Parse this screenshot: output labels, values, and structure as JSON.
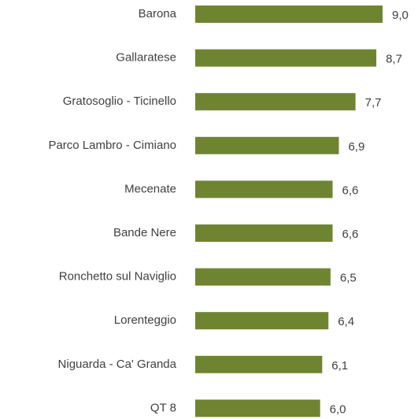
{
  "chart_data": {
    "type": "bar",
    "orientation": "horizontal",
    "categories": [
      "Barona",
      "Gallaratese",
      "Gratosoglio - Ticinello",
      "Parco Lambro - Cimiano",
      "Mecenate",
      "Bande Nere",
      "Ronchetto sul Naviglio",
      "Lorenteggio",
      "Niguarda - Ca' Granda",
      "QT 8"
    ],
    "values": [
      9.0,
      8.7,
      7.7,
      6.9,
      6.6,
      6.6,
      6.5,
      6.4,
      6.1,
      6.0
    ],
    "value_labels": [
      "9,0",
      "8,7",
      "7,7",
      "6,9",
      "6,6",
      "6,6",
      "6,5",
      "6,4",
      "6,1",
      "6,0"
    ],
    "color": "#6f8430"
  }
}
